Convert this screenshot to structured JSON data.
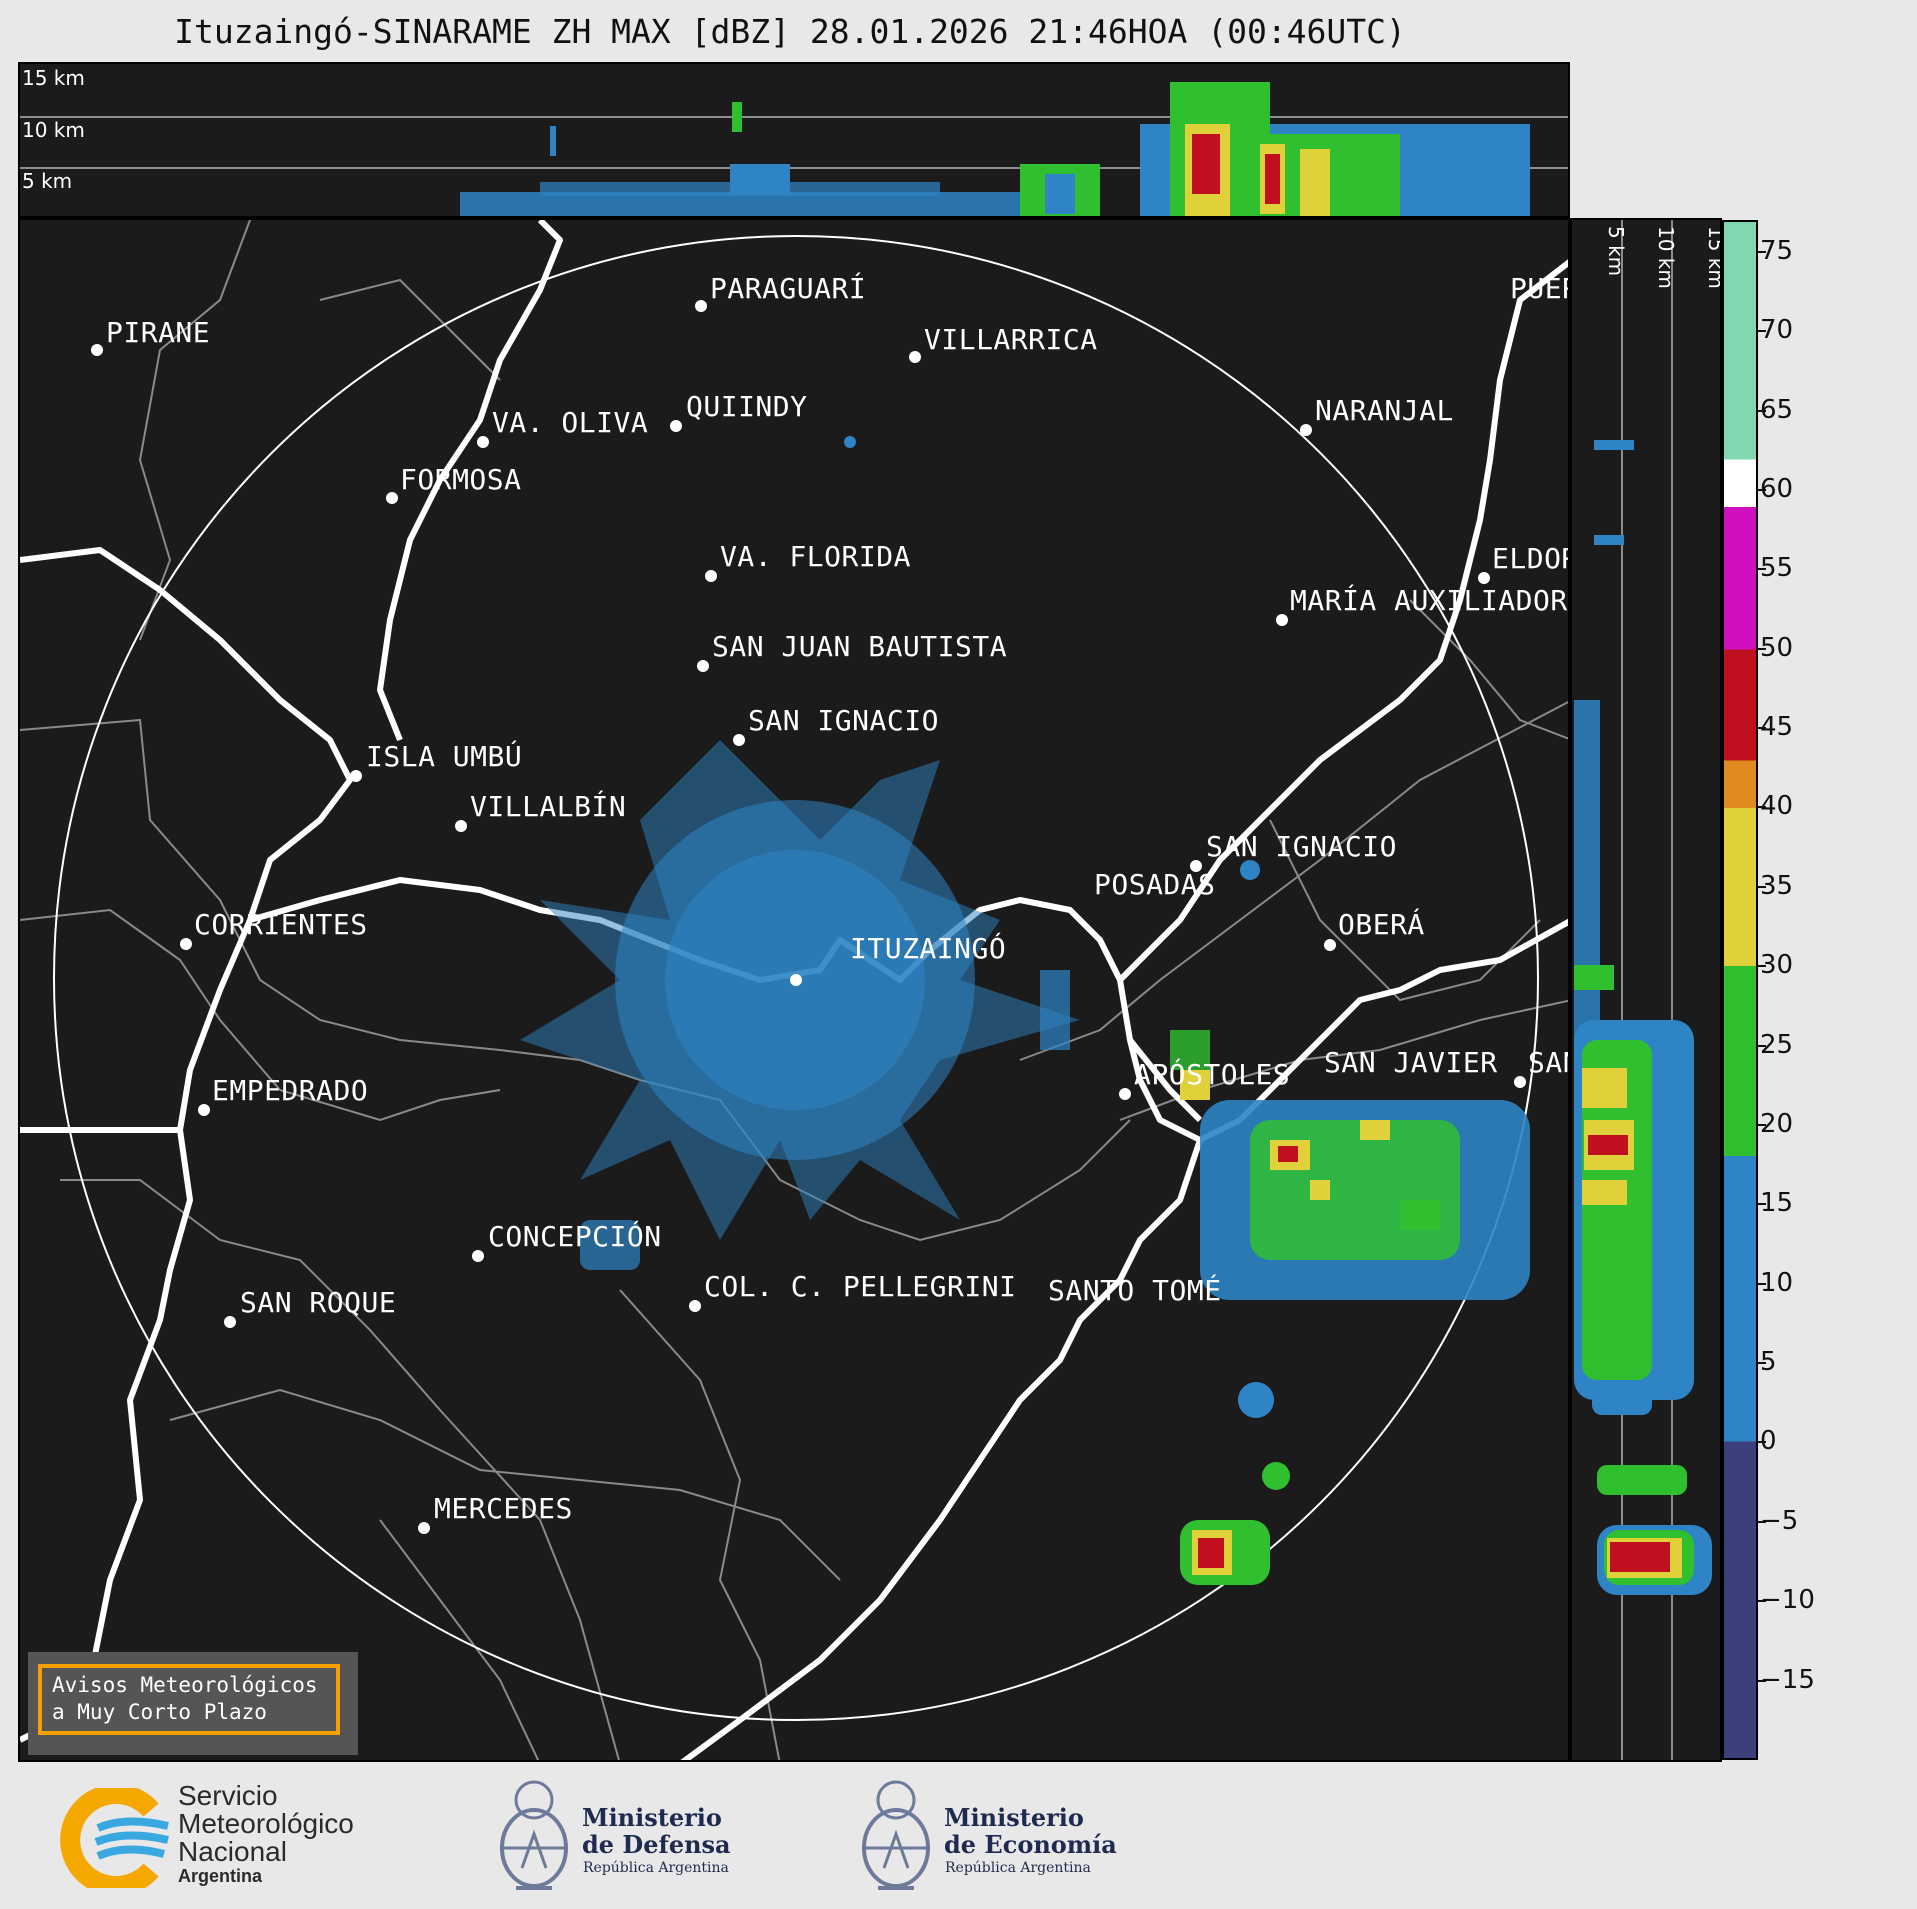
{
  "title": "Ituzaingó-SINARAME ZH MAX [dBZ] 28.01.2026 21:46HOA (00:46UTC)",
  "top_panel_labels": [
    "15 km",
    "10 km",
    "5 km"
  ],
  "side_panel_labels": [
    "5 km",
    "10 km",
    "15 km"
  ],
  "cities": [
    {
      "name": "PIRANE"
    },
    {
      "name": "PARAGUARÍ"
    },
    {
      "name": "VILLARRICA"
    },
    {
      "name": "QUIINDY"
    },
    {
      "name": "VA. OLIVA"
    },
    {
      "name": "NARANJAL"
    },
    {
      "name": "FORMOSA"
    },
    {
      "name": "PUER"
    },
    {
      "name": "VA. FLORIDA"
    },
    {
      "name": "ELDOR"
    },
    {
      "name": "MARÍA AUXILIADOR"
    },
    {
      "name": "SAN JUAN BAUTISTA"
    },
    {
      "name": "SAN IGNACIO"
    },
    {
      "name": "ISLA UMBÚ"
    },
    {
      "name": "VILLALBÍN"
    },
    {
      "name": "SAN IGNACIO"
    },
    {
      "name": "POSADAS"
    },
    {
      "name": "CORRIENTES"
    },
    {
      "name": "ITUZAINGÓ"
    },
    {
      "name": "OBERÁ"
    },
    {
      "name": "EMPEDRADO"
    },
    {
      "name": "APÓSTOLES"
    },
    {
      "name": "SAN JAVIER"
    },
    {
      "name": "SAN"
    },
    {
      "name": "CONCEPCIÓN"
    },
    {
      "name": "COL. C. PELLEGRINI"
    },
    {
      "name": "SANTO TOMÉ"
    },
    {
      "name": "SAN ROQUE"
    },
    {
      "name": "MERCEDES"
    }
  ],
  "colorbar": {
    "unit": "dBZ",
    "ticks": [
      "75",
      "70",
      "65",
      "60",
      "55",
      "50",
      "45",
      "40",
      "35",
      "30",
      "25",
      "20",
      "15",
      "10",
      "5",
      "0",
      "−5",
      "−10",
      "−15"
    ],
    "tick_values": [
      75,
      70,
      65,
      60,
      55,
      50,
      45,
      40,
      35,
      30,
      25,
      20,
      15,
      10,
      5,
      0,
      -5,
      -10,
      -15
    ],
    "range": [
      -20,
      77
    ],
    "segments": [
      {
        "from": -20,
        "to": 0,
        "color": "#3b3f7a"
      },
      {
        "from": 0,
        "to": 18,
        "color": "#2e84c4"
      },
      {
        "from": 18,
        "to": 30,
        "color": "#2fbf2f"
      },
      {
        "from": 30,
        "to": 40,
        "color": "#e0d03a"
      },
      {
        "from": 40,
        "to": 43,
        "color": "#e08a20"
      },
      {
        "from": 43,
        "to": 50,
        "color": "#c01020"
      },
      {
        "from": 50,
        "to": 59,
        "color": "#d010c0"
      },
      {
        "from": 59,
        "to": 62,
        "color": "#ffffff"
      },
      {
        "from": 62,
        "to": 77,
        "color": "#80d8b0"
      }
    ]
  },
  "notice": {
    "line1": "Avisos Meteorológicos",
    "line2": "a Muy Corto Plazo"
  },
  "logos": {
    "smn": {
      "line1": "Servicio",
      "line2": "Meteorológico",
      "line3": "Nacional",
      "line4": "Argentina"
    },
    "defensa": {
      "line1": "Ministerio",
      "line2": "de Defensa",
      "sub": "República Argentina"
    },
    "economia": {
      "line1": "Ministerio",
      "line2": "de Economía",
      "sub": "República Argentina"
    }
  },
  "colors": {
    "background": "#1b1b1b",
    "rivers": "#ffffff",
    "borders": "#8a8a8a",
    "echo_weak": "#2e84c4",
    "echo_moderate": "#2fbf2f",
    "echo_strong": "#c01020",
    "echo_medium": "#e0d03a"
  }
}
